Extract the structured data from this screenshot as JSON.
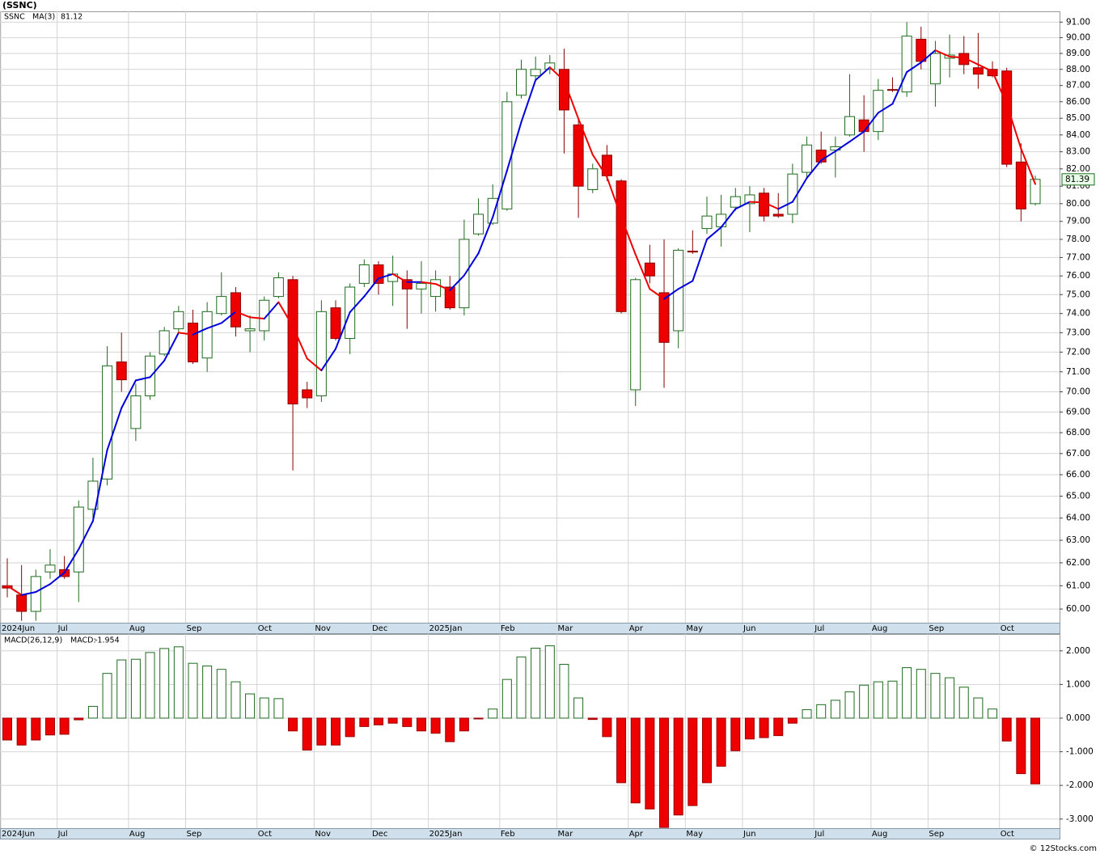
{
  "chart_data": [
    {
      "type": "candlestick",
      "title": "(SSNC)",
      "symbol": "SSNC",
      "categories": [
        "2024Jun",
        null,
        null,
        null,
        "Jul",
        null,
        null,
        null,
        null,
        "Aug",
        null,
        null,
        null,
        "Sep",
        null,
        null,
        null,
        null,
        "Oct",
        null,
        null,
        null,
        "Nov",
        null,
        null,
        null,
        "Dec",
        null,
        null,
        null,
        "2025Jan",
        null,
        null,
        null,
        null,
        "Feb",
        null,
        null,
        null,
        "Mar",
        null,
        null,
        null,
        null,
        "Apr",
        null,
        null,
        null,
        "May",
        null,
        null,
        null,
        "Jun",
        null,
        null,
        null,
        null,
        "Jul",
        null,
        null,
        null,
        "Aug",
        null,
        null,
        null,
        "Sep",
        null,
        null,
        null,
        null,
        "Oct",
        null,
        null
      ],
      "open": [
        61.0,
        60.6,
        59.9,
        61.6,
        61.7,
        61.6,
        64.4,
        65.8,
        71.5,
        68.2,
        69.8,
        71.9,
        73.2,
        73.5,
        71.7,
        74.0,
        75.1,
        73.1,
        73.1,
        74.9,
        75.8,
        70.1,
        69.8,
        74.3,
        72.7,
        75.6,
        76.6,
        75.7,
        75.8,
        75.3,
        74.9,
        75.4,
        74.3,
        78.3,
        78.9,
        79.7,
        86.4,
        87.6,
        88.0,
        88.0,
        84.6,
        80.8,
        82.8,
        81.3,
        70.1,
        76.7,
        75.1,
        73.1,
        77.35,
        78.6,
        78.7,
        79.8,
        80.0,
        80.6,
        79.4,
        79.4,
        81.8,
        83.1,
        83.1,
        84.0,
        84.9,
        84.2,
        86.75,
        86.6,
        89.9,
        87.1,
        88.7,
        89.0,
        88.1,
        88.0,
        87.9,
        82.4,
        80.0
      ],
      "high": [
        62.2,
        61.9,
        61.7,
        62.6,
        62.3,
        64.8,
        66.8,
        72.3,
        73.0,
        70.4,
        72.0,
        73.3,
        74.4,
        74.2,
        74.6,
        76.2,
        75.4,
        73.9,
        74.9,
        76.2,
        76.0,
        70.5,
        74.7,
        74.7,
        75.6,
        76.9,
        76.8,
        77.1,
        76.3,
        76.8,
        76.3,
        76.0,
        79.1,
        80.3,
        81.1,
        86.6,
        88.6,
        88.8,
        88.9,
        89.3,
        84.9,
        82.3,
        83.4,
        81.4,
        75.9,
        77.7,
        78.0,
        77.5,
        78.5,
        80.4,
        80.5,
        80.9,
        81.0,
        80.9,
        80.6,
        82.3,
        83.9,
        84.2,
        83.9,
        87.7,
        86.4,
        87.4,
        87.5,
        91.0,
        90.7,
        89.8,
        90.2,
        90.1,
        90.3,
        88.5,
        88.1,
        83.5,
        81.6
      ],
      "low": [
        60.5,
        59.5,
        59.5,
        61.3,
        61.3,
        60.3,
        64.0,
        65.5,
        70.0,
        67.6,
        69.6,
        71.8,
        73.0,
        71.4,
        71.0,
        73.9,
        72.8,
        72.0,
        72.6,
        74.8,
        66.2,
        69.2,
        69.5,
        72.6,
        71.9,
        75.4,
        75.0,
        74.4,
        73.2,
        74.0,
        74.1,
        74.2,
        73.9,
        78.2,
        78.8,
        79.6,
        86.2,
        87.3,
        87.7,
        82.9,
        79.2,
        80.6,
        81.3,
        74.0,
        69.3,
        75.6,
        70.2,
        72.2,
        77.2,
        78.3,
        77.6,
        79.6,
        78.4,
        79.0,
        79.2,
        78.9,
        81.5,
        82.3,
        81.5,
        83.9,
        83.0,
        83.7,
        86.6,
        86.3,
        88.0,
        85.7,
        87.5,
        87.7,
        86.8,
        87.5,
        82.1,
        79.0,
        79.9
      ],
      "close": [
        60.9,
        59.9,
        61.4,
        61.9,
        61.4,
        64.5,
        65.7,
        71.3,
        70.6,
        69.8,
        71.8,
        73.1,
        74.1,
        71.5,
        74.1,
        74.9,
        73.3,
        73.2,
        74.7,
        75.9,
        69.4,
        69.7,
        74.1,
        72.7,
        75.4,
        76.6,
        75.6,
        76.1,
        75.3,
        75.6,
        75.8,
        74.3,
        78.0,
        79.4,
        80.3,
        86.0,
        88.0,
        88.0,
        88.4,
        85.5,
        81.0,
        82.0,
        81.6,
        74.1,
        75.8,
        76.0,
        72.5,
        77.4,
        77.3,
        79.3,
        79.4,
        80.4,
        80.5,
        79.3,
        79.3,
        81.7,
        83.4,
        82.4,
        83.3,
        85.1,
        84.2,
        86.7,
        86.7,
        90.1,
        88.5,
        89.0,
        88.9,
        88.3,
        87.7,
        87.6,
        82.27,
        79.7,
        81.39
      ],
      "up_color": "#1e6b1e",
      "down_color": "#ee0000",
      "symbol_color": "#118811",
      "series": [
        {
          "name": "MA(3)",
          "color": "#0000dd",
          "down_color": "#ee0000",
          "values": [
            61.0,
            60.6,
            60.73,
            61.07,
            61.57,
            62.6,
            63.87,
            67.17,
            69.2,
            70.57,
            70.73,
            71.57,
            73.0,
            72.9,
            73.23,
            73.5,
            74.1,
            73.8,
            73.73,
            74.6,
            73.33,
            71.67,
            71.07,
            72.17,
            74.07,
            74.9,
            75.87,
            76.1,
            75.67,
            75.67,
            75.57,
            75.23,
            76.03,
            77.23,
            79.23,
            81.9,
            84.77,
            87.33,
            88.13,
            87.3,
            84.97,
            82.83,
            81.53,
            79.23,
            77.17,
            75.3,
            74.77,
            75.3,
            75.73,
            78.0,
            78.67,
            79.7,
            80.1,
            80.07,
            79.7,
            80.1,
            81.47,
            82.5,
            83.03,
            83.6,
            84.2,
            85.33,
            85.87,
            87.83,
            88.43,
            89.2,
            88.8,
            88.73,
            88.3,
            87.87,
            85.86,
            83.19,
            81.12
          ]
        }
      ],
      "ylim": [
        59.42,
        91.7
      ],
      "log_scale": true,
      "grid": true,
      "yticks": [
        {
          "value": 60,
          "label": "60.00"
        },
        {
          "value": 61,
          "label": "61.00"
        },
        {
          "value": 62,
          "label": "62.00"
        },
        {
          "value": 63,
          "label": "63.00"
        },
        {
          "value": 64,
          "label": "64.00"
        },
        {
          "value": 65,
          "label": "65.00"
        },
        {
          "value": 66,
          "label": "66.00"
        },
        {
          "value": 67,
          "label": "67.00"
        },
        {
          "value": 68,
          "label": "68.00"
        },
        {
          "value": 69,
          "label": "69.00"
        },
        {
          "value": 70,
          "label": "70.00"
        },
        {
          "value": 71,
          "label": "71.00"
        },
        {
          "value": 72,
          "label": "72.00"
        },
        {
          "value": 73,
          "label": "73.00"
        },
        {
          "value": 74,
          "label": "74.00"
        },
        {
          "value": 75,
          "label": "75.00"
        },
        {
          "value": 76,
          "label": "76.00"
        },
        {
          "value": 77,
          "label": "77.00"
        },
        {
          "value": 78,
          "label": "78.00"
        },
        {
          "value": 79,
          "label": "79.00"
        },
        {
          "value": 80,
          "label": "80.00"
        },
        {
          "value": 81,
          "label": "81.00"
        },
        {
          "value": 82,
          "label": "82.00"
        },
        {
          "value": 83,
          "label": "83.00"
        },
        {
          "value": 84,
          "label": "84.00"
        },
        {
          "value": 85,
          "label": "85.00"
        },
        {
          "value": 86,
          "label": "86.00"
        },
        {
          "value": 87,
          "label": "87.00"
        },
        {
          "value": 88,
          "label": "88.00"
        },
        {
          "value": 89,
          "label": "89.00"
        },
        {
          "value": 90,
          "label": "90.00"
        },
        {
          "value": 91,
          "label": "91.00"
        }
      ]
    },
    {
      "type": "bar",
      "title": "MACD(26,12,9)",
      "categories": [
        "2024Jun",
        null,
        null,
        null,
        "Jul",
        null,
        null,
        null,
        null,
        "Aug",
        null,
        null,
        null,
        "Sep",
        null,
        null,
        null,
        null,
        "Oct",
        null,
        null,
        null,
        "Nov",
        null,
        null,
        null,
        "Dec",
        null,
        null,
        null,
        "2025Jan",
        null,
        null,
        null,
        null,
        "Feb",
        null,
        null,
        null,
        "Mar",
        null,
        null,
        null,
        null,
        "Apr",
        null,
        null,
        null,
        "May",
        null,
        null,
        null,
        "Jun",
        null,
        null,
        null,
        null,
        "Jul",
        null,
        null,
        null,
        "Aug",
        null,
        null,
        null,
        "Sep",
        null,
        null,
        null,
        null,
        "Oct",
        null,
        null
      ],
      "series": [
        {
          "name": "MACD:",
          "color": "#1e6b1e",
          "down_color": "#ee0000",
          "values": [
            -0.65,
            -0.8,
            -0.65,
            -0.5,
            -0.48,
            -0.05,
            0.35,
            1.33,
            1.73,
            1.75,
            1.95,
            2.07,
            2.12,
            1.63,
            1.55,
            1.45,
            1.08,
            0.72,
            0.6,
            0.58,
            -0.38,
            -0.95,
            -0.8,
            -0.8,
            -0.55,
            -0.25,
            -0.2,
            -0.15,
            -0.25,
            -0.38,
            -0.45,
            -0.7,
            -0.38,
            -0.02,
            0.27,
            1.15,
            1.82,
            2.08,
            2.15,
            1.6,
            0.6,
            -0.04,
            -0.55,
            -1.92,
            -2.52,
            -2.7,
            -3.25,
            -2.88,
            -2.6,
            -1.92,
            -1.43,
            -0.97,
            -0.62,
            -0.58,
            -0.52,
            -0.15,
            0.25,
            0.4,
            0.53,
            0.78,
            0.98,
            1.08,
            1.1,
            1.5,
            1.45,
            1.33,
            1.2,
            0.92,
            0.6,
            0.27,
            -0.68,
            -1.65,
            -1.954
          ]
        }
      ],
      "ylim": [
        -3.27,
        2.5
      ],
      "grid": true,
      "yticks": [
        {
          "value": 2,
          "label": "2.000"
        },
        {
          "value": 1,
          "label": "1.000"
        },
        {
          "value": 0,
          "label": "0.000"
        },
        {
          "value": -1,
          "label": "-1.000"
        },
        {
          "value": -2,
          "label": "-2.000"
        },
        {
          "value": -3,
          "label": "-3.000"
        }
      ]
    }
  ],
  "credit": "© 12Stocks.com"
}
